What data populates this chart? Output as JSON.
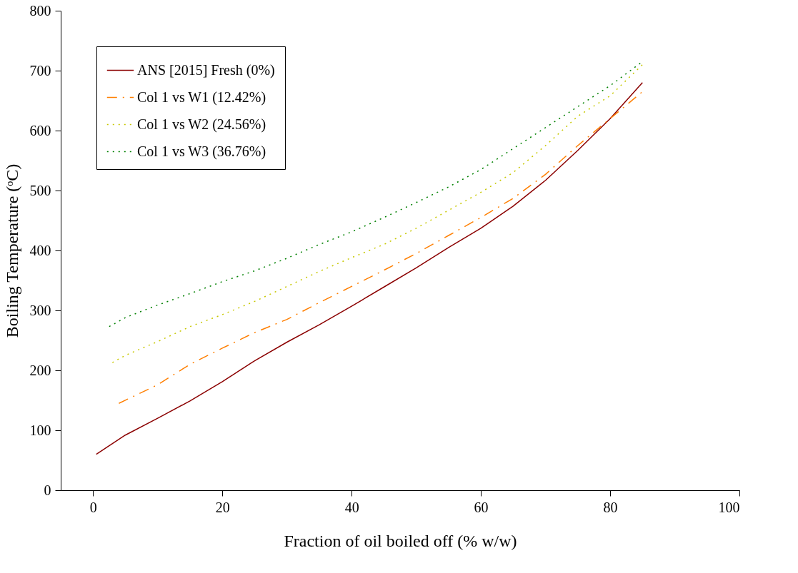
{
  "chart_data": {
    "type": "line",
    "xlabel": "Fraction of oil boiled off (% w/w)",
    "ylabel": "Boiling Temperature (ᵒC)",
    "xlim": [
      -5,
      100
    ],
    "xticks": [
      0,
      20,
      40,
      60,
      80,
      100
    ],
    "ylim": [
      0,
      800
    ],
    "yticks": [
      0,
      100,
      200,
      300,
      400,
      500,
      600,
      700,
      800
    ],
    "grid": false,
    "legend": "top left",
    "marker": "none",
    "series": [
      {
        "name": "ANS [2015] Fresh (0%)",
        "color": "#8b0000",
        "line_style": "solid",
        "x": [
          0.5,
          5,
          10,
          15,
          20,
          25,
          30,
          35,
          40,
          45,
          50,
          55,
          60,
          65,
          70,
          75,
          80,
          85
        ],
        "values": [
          60,
          92,
          120,
          149,
          181,
          216,
          247,
          276,
          307,
          339,
          371,
          405,
          437,
          474,
          517,
          567,
          620,
          680
        ]
      },
      {
        "name": "Col 1 vs W1 (12.42%)",
        "color": "#ff7f00",
        "line_style": "dashed",
        "x": [
          4,
          10,
          15,
          20,
          25,
          30,
          35,
          40,
          45,
          50,
          55,
          60,
          65,
          70,
          75,
          80,
          85
        ],
        "values": [
          145,
          176,
          210,
          237,
          263,
          285,
          313,
          340,
          367,
          395,
          425,
          455,
          487,
          527,
          575,
          620,
          665
        ]
      },
      {
        "name": "Col 1 vs W2 (24.56%)",
        "color": "#c8c800",
        "line_style": "dotted",
        "x": [
          3,
          5,
          10,
          15,
          20,
          25,
          30,
          35,
          40,
          45,
          50,
          55,
          60,
          65,
          70,
          75,
          80,
          85
        ],
        "values": [
          213,
          225,
          248,
          273,
          293,
          315,
          340,
          365,
          388,
          410,
          437,
          467,
          497,
          530,
          575,
          624,
          658,
          710
        ]
      },
      {
        "name": "Col 1 vs W3 (36.76%)",
        "color": "#008000",
        "line_style": "dotted",
        "x": [
          2.5,
          5,
          10,
          15,
          20,
          25,
          30,
          35,
          40,
          45,
          50,
          55,
          60,
          65,
          70,
          75,
          80,
          85
        ],
        "values": [
          273,
          288,
          309,
          328,
          348,
          366,
          387,
          410,
          431,
          455,
          480,
          506,
          535,
          570,
          605,
          640,
          675,
          715
        ]
      }
    ]
  }
}
